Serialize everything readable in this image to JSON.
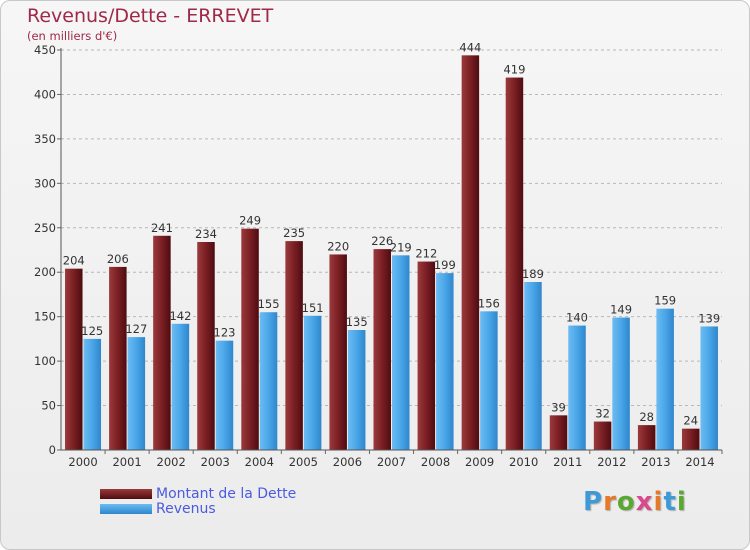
{
  "chart_data": {
    "type": "bar",
    "title": "Revenus/Dette - ERREVET",
    "subtitle": "(en milliers d'€)",
    "categories": [
      "2000",
      "2001",
      "2002",
      "2003",
      "2004",
      "2005",
      "2006",
      "2007",
      "2008",
      "2009",
      "2010",
      "2011",
      "2012",
      "2013",
      "2014"
    ],
    "series": [
      {
        "name": "Montant de la Dette",
        "color": "#7a1f24",
        "values": [
          204,
          206,
          241,
          234,
          249,
          235,
          220,
          226,
          212,
          444,
          419,
          39,
          32,
          28,
          24
        ]
      },
      {
        "name": "Revenus",
        "color": "#4aa6e8",
        "values": [
          125,
          127,
          142,
          123,
          155,
          151,
          135,
          219,
          199,
          156,
          189,
          140,
          149,
          159,
          139
        ]
      }
    ],
    "ylim": [
      0,
      450
    ],
    "yticks": [
      0,
      50,
      100,
      150,
      200,
      250,
      300,
      350,
      400,
      450
    ],
    "grid": true,
    "legend": "bottom-left"
  },
  "watermark": "Proxiti"
}
